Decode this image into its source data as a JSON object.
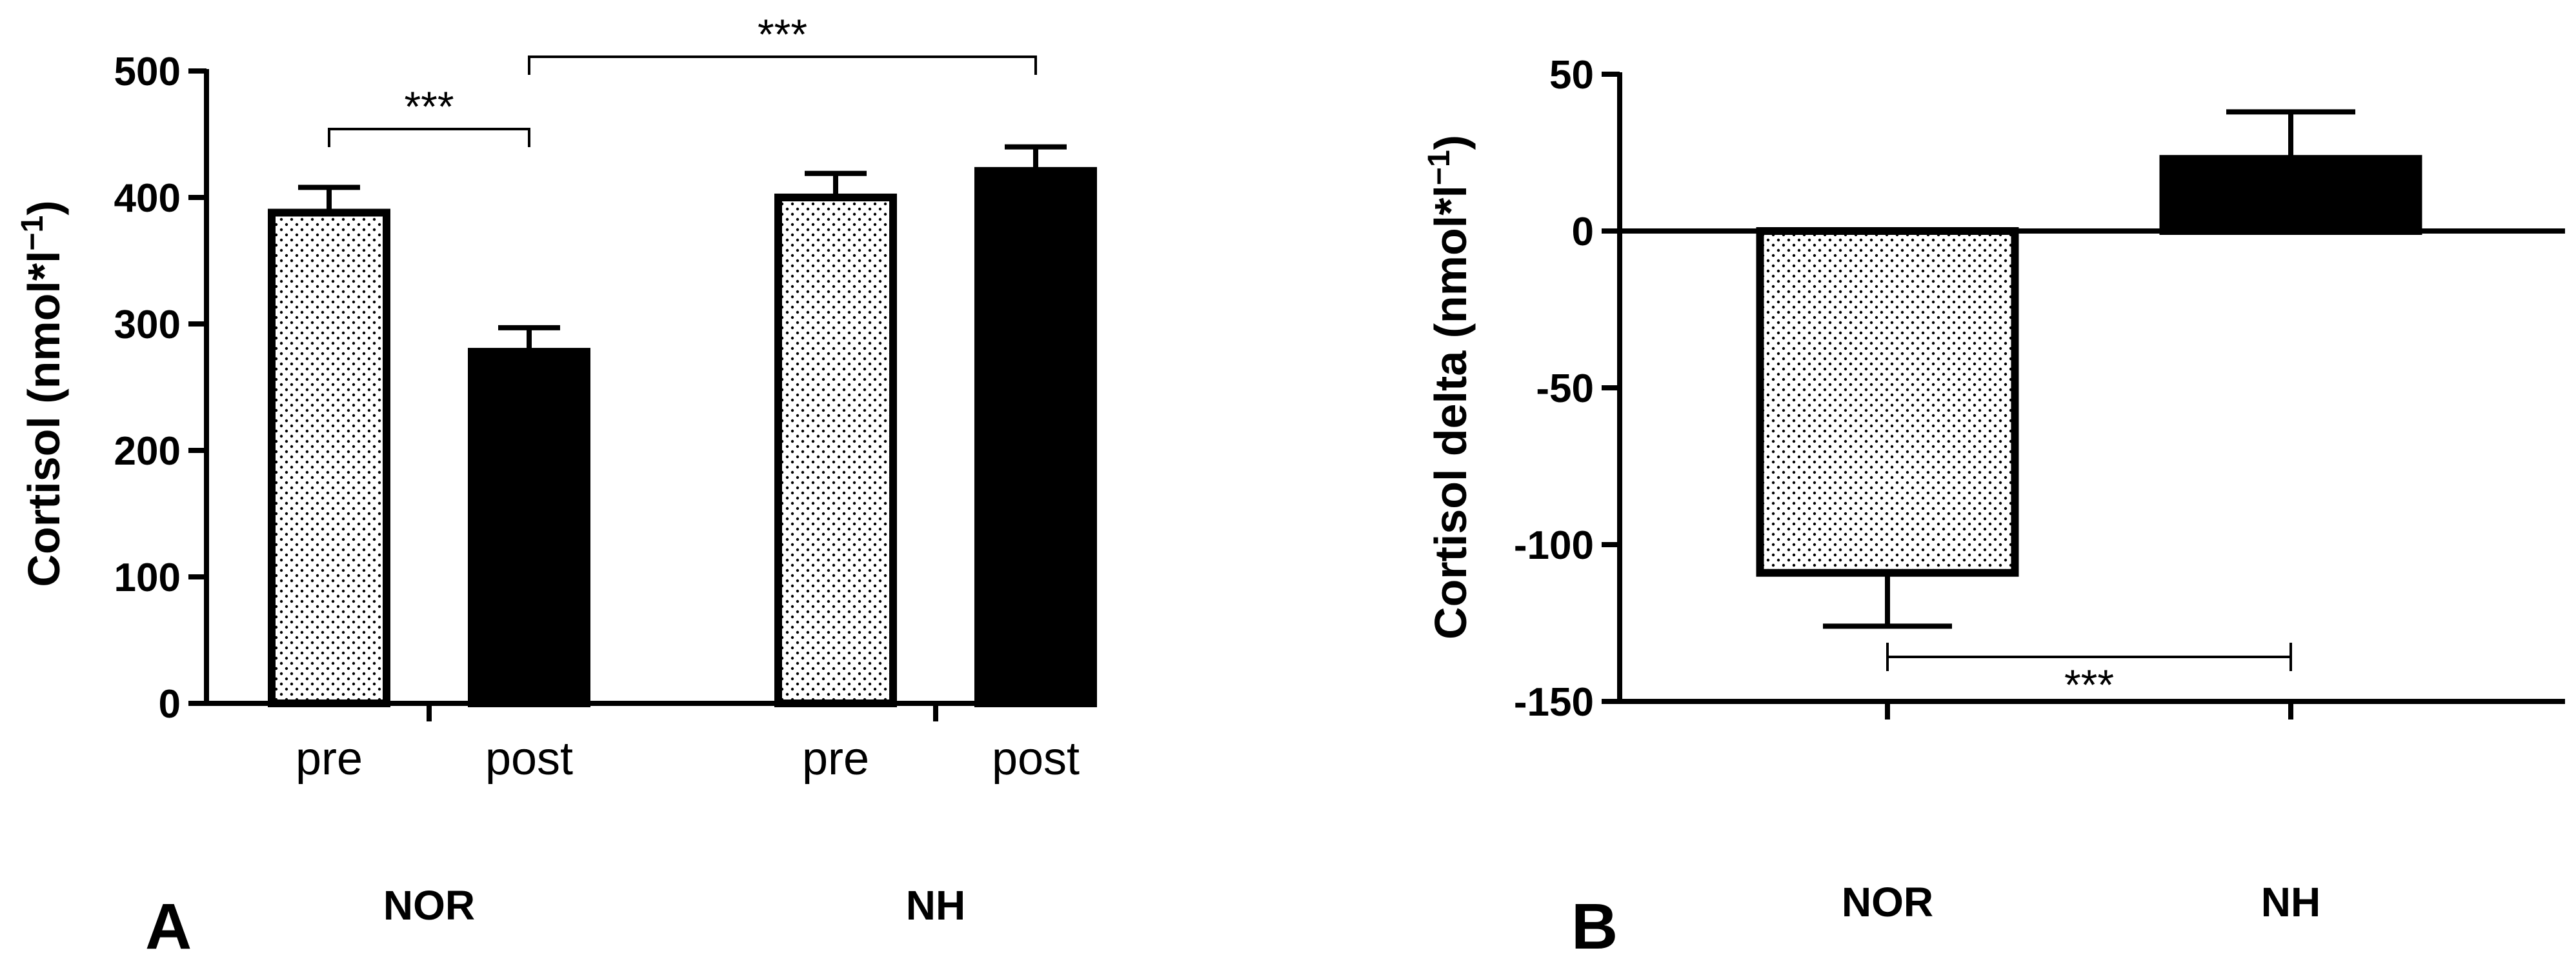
{
  "colors": {
    "ink": "#000000",
    "dot_fill": "#ffffff"
  },
  "chart_data": [
    {
      "panel": "A",
      "type": "bar",
      "ylabel_main": "Cortisol (nmol*l",
      "ylabel_sup": "−1",
      "ylabel_close": ")",
      "ylim": [
        0,
        500
      ],
      "yticks": [
        0,
        100,
        200,
        300,
        400,
        500
      ],
      "grid": false,
      "groups": [
        {
          "label": "NOR",
          "bars": [
            {
              "label": "pre",
              "value": 388,
              "error": 20,
              "pattern": "dotted"
            },
            {
              "label": "post",
              "value": 278,
              "error": 19,
              "pattern": "solid"
            }
          ]
        },
        {
          "label": "NH",
          "bars": [
            {
              "label": "pre",
              "value": 400,
              "error": 19,
              "pattern": "dotted"
            },
            {
              "label": "post",
              "value": 421,
              "error": 19,
              "pattern": "solid"
            }
          ]
        }
      ],
      "significance": [
        {
          "from": "NOR pre",
          "to": "NOR post",
          "label": "***"
        },
        {
          "from": "NOR post",
          "to": "NH post",
          "label": "***"
        }
      ]
    },
    {
      "panel": "B",
      "type": "bar",
      "ylabel_main": "Cortisol delta (nmol*l",
      "ylabel_sup": "−1",
      "ylabel_close": ")",
      "ylim": [
        -150,
        50
      ],
      "yticks": [
        -150,
        -100,
        -50,
        0,
        50
      ],
      "grid": false,
      "categories": [
        "NOR",
        "NH"
      ],
      "values": [
        -109,
        23
      ],
      "errors": [
        17,
        15
      ],
      "patterns": [
        "dotted",
        "solid"
      ],
      "significance": [
        {
          "from": "NOR",
          "to": "NH",
          "label": "***"
        }
      ]
    }
  ]
}
